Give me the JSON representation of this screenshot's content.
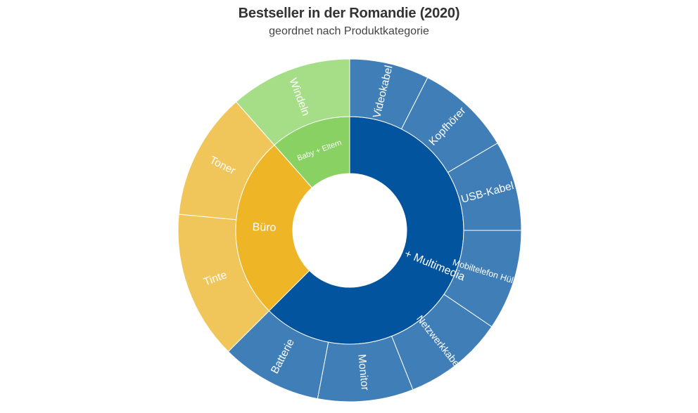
{
  "chart_data": {
    "type": "sunburst",
    "title": "Bestseller in der Romandie (2020)",
    "subtitle": "geordnet nach Produktkategorie",
    "colors": {
      "it_multimedia_inner": "#02549E",
      "it_multimedia_outer": "#407EB8",
      "buero_inner": "#EEB526",
      "buero_outer": "#F0C65B",
      "baby_inner": "#88D162",
      "baby_outer": "#A6DE88"
    },
    "categories": [
      {
        "name": "IT + Multimedia",
        "value": 62.5,
        "color": "#02549E",
        "children": [
          {
            "name": "Videokabel",
            "value": 7.5,
            "color": "#407EB8"
          },
          {
            "name": "Kopfhörer",
            "value": 9.0,
            "color": "#407EB8"
          },
          {
            "name": "USB-Kabel",
            "value": 8.5,
            "color": "#407EB8"
          },
          {
            "name": "Mobiltelefon Hülle",
            "value": 9.5,
            "color": "#407EB8"
          },
          {
            "name": "Netzwerkkabel",
            "value": 9.5,
            "color": "#407EB8"
          },
          {
            "name": "Monitor",
            "value": 9.0,
            "color": "#407EB8"
          },
          {
            "name": "Batterie",
            "value": 9.5,
            "color": "#407EB8"
          }
        ]
      },
      {
        "name": "Büro",
        "value": 26.0,
        "color": "#EEB526",
        "children": [
          {
            "name": "Tinte",
            "value": 14.0,
            "color": "#F0C65B"
          },
          {
            "name": "Toner",
            "value": 12.0,
            "color": "#F0C65B"
          }
        ]
      },
      {
        "name": "Baby + Eltern",
        "value": 11.5,
        "color": "#88D162",
        "children": [
          {
            "name": "Windeln",
            "value": 11.5,
            "color": "#A6DE88"
          }
        ]
      }
    ]
  }
}
